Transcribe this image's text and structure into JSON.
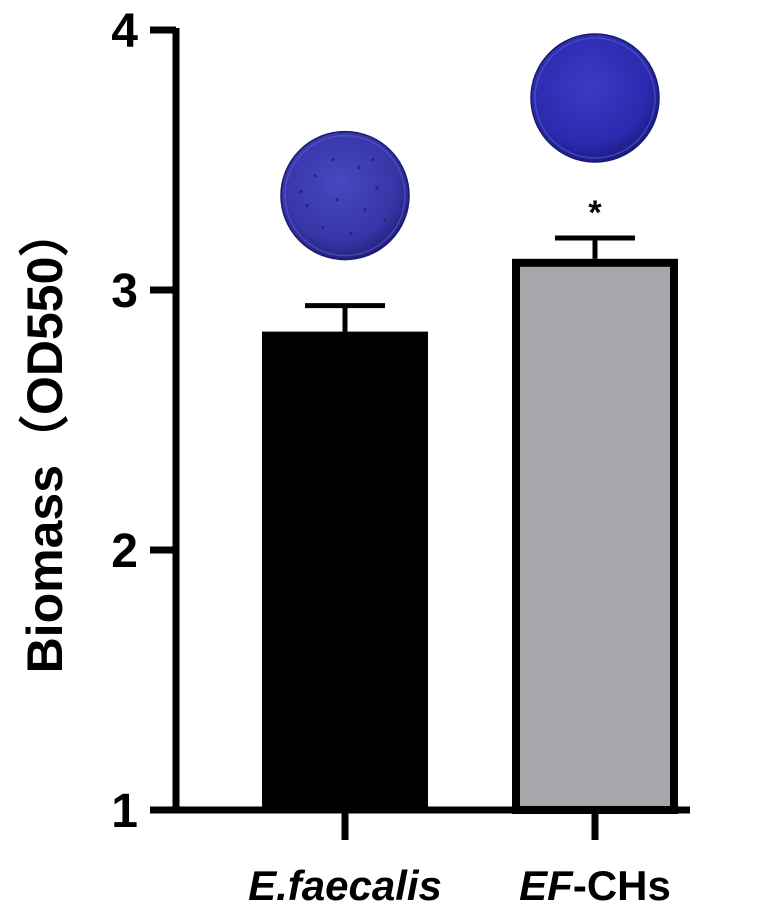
{
  "chart_data": {
    "type": "bar",
    "title": "",
    "xlabel": "",
    "ylabel": "Biomass（OD550）",
    "ylim": [
      1,
      4
    ],
    "yticks": [
      "1",
      "2",
      "3",
      "4"
    ],
    "grid": false,
    "legend": "none",
    "categories": [
      {
        "parts": [
          {
            "text": "E.faecalis",
            "italic": true
          }
        ]
      },
      {
        "parts": [
          {
            "text": "EF",
            "italic": true
          },
          {
            "text": "-CHs",
            "italic": false
          }
        ]
      }
    ],
    "values": [
      2.84,
      3.12
    ],
    "errors": [
      0.1,
      0.08
    ],
    "bar_colors": [
      "#000000",
      "#a7a7ab"
    ],
    "significance": [
      "",
      "*"
    ],
    "inset_images": [
      {
        "name": "biofilm-well-ef",
        "color": "#3535a6"
      },
      {
        "name": "biofilm-well-efchs",
        "color": "#2a2ab0"
      }
    ]
  }
}
